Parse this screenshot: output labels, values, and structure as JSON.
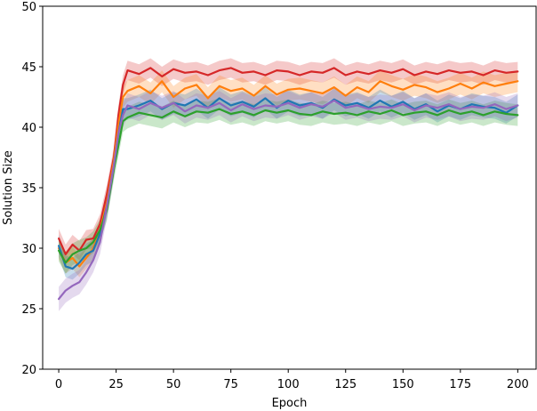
{
  "chart_data": {
    "type": "line",
    "title": "",
    "xlabel": "Epoch",
    "ylabel": "Solution Size",
    "xlim": [
      -7,
      208
    ],
    "ylim": [
      20,
      50
    ],
    "xticks": [
      0,
      25,
      50,
      75,
      100,
      125,
      150,
      175,
      200
    ],
    "yticks": [
      20,
      25,
      30,
      35,
      40,
      45,
      50
    ],
    "grid": false,
    "legend": "none",
    "series": [
      {
        "color": "#d62728",
        "band_halfwidth": 0.8,
        "x": [
          0,
          3,
          6,
          9,
          12,
          15,
          18,
          21,
          24,
          26,
          28,
          30,
          35,
          40,
          45,
          50,
          55,
          60,
          65,
          70,
          75,
          80,
          85,
          90,
          95,
          100,
          105,
          110,
          115,
          120,
          125,
          130,
          135,
          140,
          145,
          150,
          155,
          160,
          165,
          170,
          175,
          180,
          185,
          190,
          195,
          200
        ],
        "values": [
          30.8,
          29.5,
          30.3,
          29.8,
          30.7,
          30.8,
          32.0,
          34.5,
          37.5,
          41.0,
          43.5,
          44.7,
          44.4,
          44.9,
          44.2,
          44.8,
          44.5,
          44.6,
          44.3,
          44.7,
          44.9,
          44.5,
          44.6,
          44.3,
          44.7,
          44.6,
          44.3,
          44.6,
          44.5,
          44.9,
          44.3,
          44.6,
          44.4,
          44.7,
          44.5,
          44.8,
          44.3,
          44.6,
          44.4,
          44.7,
          44.5,
          44.6,
          44.3,
          44.7,
          44.5,
          44.6
        ]
      },
      {
        "color": "#ff7f0e",
        "band_halfwidth": 0.9,
        "x": [
          0,
          3,
          6,
          9,
          12,
          15,
          18,
          21,
          24,
          26,
          28,
          30,
          35,
          40,
          45,
          50,
          55,
          60,
          65,
          70,
          75,
          80,
          85,
          90,
          95,
          100,
          105,
          110,
          115,
          120,
          125,
          130,
          135,
          140,
          145,
          150,
          155,
          160,
          165,
          170,
          175,
          180,
          185,
          190,
          195,
          200
        ],
        "values": [
          30.0,
          28.8,
          29.2,
          28.5,
          29.2,
          30.0,
          31.5,
          33.8,
          37.2,
          40.2,
          42.5,
          43.0,
          43.4,
          42.8,
          43.8,
          42.5,
          43.2,
          43.5,
          42.4,
          43.4,
          43.0,
          43.2,
          42.6,
          43.4,
          42.7,
          43.1,
          43.2,
          43.0,
          42.8,
          43.3,
          42.6,
          43.3,
          42.9,
          43.8,
          43.4,
          43.1,
          43.5,
          43.3,
          42.9,
          43.2,
          43.6,
          43.2,
          43.7,
          43.4,
          43.6,
          43.8
        ]
      },
      {
        "color": "#1f77b4",
        "band_halfwidth": 0.9,
        "x": [
          0,
          3,
          6,
          9,
          12,
          15,
          18,
          21,
          24,
          26,
          28,
          30,
          35,
          40,
          45,
          50,
          55,
          60,
          65,
          70,
          75,
          80,
          85,
          90,
          95,
          100,
          105,
          110,
          115,
          120,
          125,
          130,
          135,
          140,
          145,
          150,
          155,
          160,
          165,
          170,
          175,
          180,
          185,
          190,
          195,
          200
        ],
        "values": [
          30.2,
          28.5,
          28.3,
          28.8,
          29.5,
          29.8,
          31.2,
          33.5,
          36.8,
          39.5,
          41.5,
          41.5,
          41.8,
          42.2,
          41.5,
          42.0,
          41.8,
          42.3,
          41.6,
          42.4,
          41.8,
          42.1,
          41.7,
          42.4,
          41.6,
          42.2,
          41.8,
          42.0,
          41.6,
          42.3,
          41.8,
          42.0,
          41.6,
          42.2,
          41.7,
          42.1,
          41.5,
          41.9,
          41.3,
          41.8,
          41.5,
          41.9,
          41.7,
          41.6,
          41.2,
          41.8
        ]
      },
      {
        "color": "#2ca02c",
        "band_halfwidth": 0.9,
        "x": [
          0,
          3,
          6,
          9,
          12,
          15,
          18,
          21,
          24,
          26,
          28,
          30,
          35,
          40,
          45,
          50,
          55,
          60,
          65,
          70,
          75,
          80,
          85,
          90,
          95,
          100,
          105,
          110,
          115,
          120,
          125,
          130,
          135,
          140,
          145,
          150,
          155,
          160,
          165,
          170,
          175,
          180,
          185,
          190,
          195,
          200
        ],
        "values": [
          29.8,
          28.8,
          29.5,
          29.8,
          30.0,
          30.5,
          31.5,
          33.2,
          36.5,
          38.5,
          40.5,
          40.8,
          41.2,
          41.0,
          40.8,
          41.3,
          40.9,
          41.3,
          41.2,
          41.5,
          41.1,
          41.3,
          41.0,
          41.4,
          41.2,
          41.4,
          41.1,
          41.0,
          41.3,
          41.1,
          41.2,
          41.0,
          41.3,
          41.1,
          41.4,
          41.0,
          41.2,
          41.3,
          41.0,
          41.4,
          41.1,
          41.3,
          41.0,
          41.3,
          41.1,
          41.0
        ]
      },
      {
        "color": "#9467bd",
        "band_halfwidth": 1.0,
        "x": [
          0,
          3,
          6,
          9,
          12,
          15,
          18,
          21,
          24,
          26,
          28,
          30,
          35,
          40,
          45,
          50,
          55,
          60,
          65,
          70,
          75,
          80,
          85,
          90,
          95,
          100,
          105,
          110,
          115,
          120,
          125,
          130,
          135,
          140,
          145,
          150,
          155,
          160,
          165,
          170,
          175,
          180,
          185,
          190,
          195,
          200
        ],
        "values": [
          25.8,
          26.5,
          26.9,
          27.2,
          28.0,
          29.0,
          30.5,
          33.5,
          36.8,
          39.5,
          41.0,
          41.8,
          41.5,
          42.0,
          41.6,
          42.0,
          41.3,
          41.8,
          41.6,
          42.0,
          41.4,
          41.9,
          41.5,
          41.8,
          41.7,
          42.0,
          41.6,
          41.9,
          41.7,
          42.2,
          41.6,
          41.8,
          41.5,
          41.7,
          41.6,
          41.9,
          41.4,
          41.8,
          41.6,
          41.9,
          41.5,
          41.7,
          41.6,
          41.9,
          41.5,
          41.8
        ]
      }
    ]
  }
}
